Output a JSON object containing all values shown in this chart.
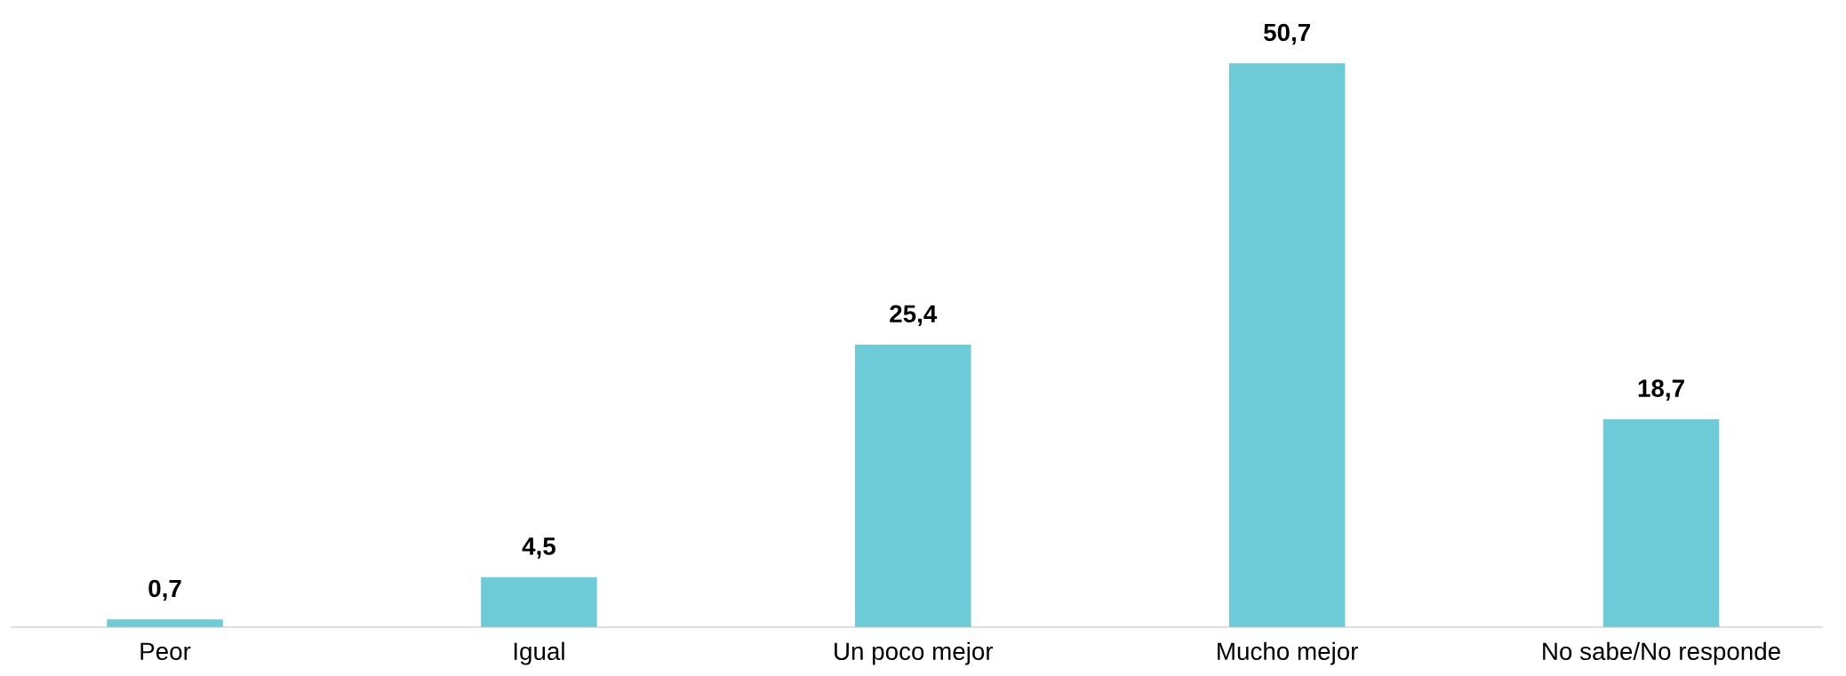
{
  "chart_data": {
    "type": "bar",
    "categories": [
      "Peor",
      "Igual",
      "Un poco mejor",
      "Mucho mejor",
      "No sabe/No responde"
    ],
    "values": [
      0.7,
      4.5,
      25.4,
      50.7,
      18.7
    ],
    "value_labels": [
      "0,7",
      "4,5",
      "25,4",
      "50,7",
      "18,7"
    ],
    "color": "#6ccbd6",
    "grid": false,
    "legend": false
  }
}
